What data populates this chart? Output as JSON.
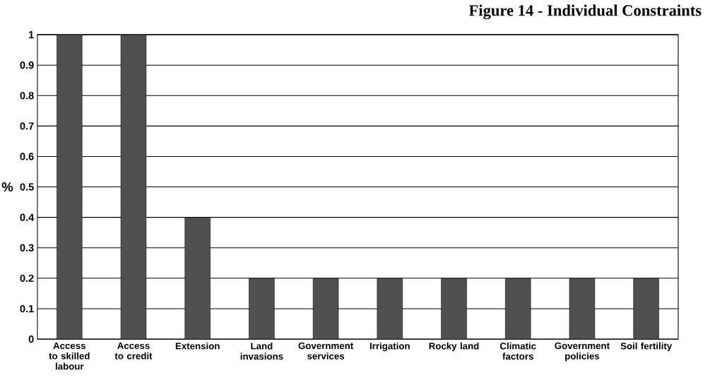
{
  "chart_data": {
    "type": "bar",
    "title": "Figure 14 - Individual Constraints",
    "ylabel": "%",
    "categories": [
      "Access to skilled labour",
      "Access to credit",
      "Extension",
      "Land invasions",
      "Government services",
      "Irrigation",
      "Rocky land",
      "Climatic factors",
      "Government policies",
      "Soil fertility"
    ],
    "values": [
      1,
      1,
      0.4,
      0.2,
      0.2,
      0.2,
      0.2,
      0.2,
      0.2,
      0.2
    ],
    "color": "#505050",
    "ylim": [
      0,
      1
    ],
    "yticks": [
      0,
      0.1,
      0.2,
      0.3,
      0.4,
      0.5,
      0.6,
      0.7,
      0.8,
      0.9,
      1
    ],
    "grid": "y"
  }
}
